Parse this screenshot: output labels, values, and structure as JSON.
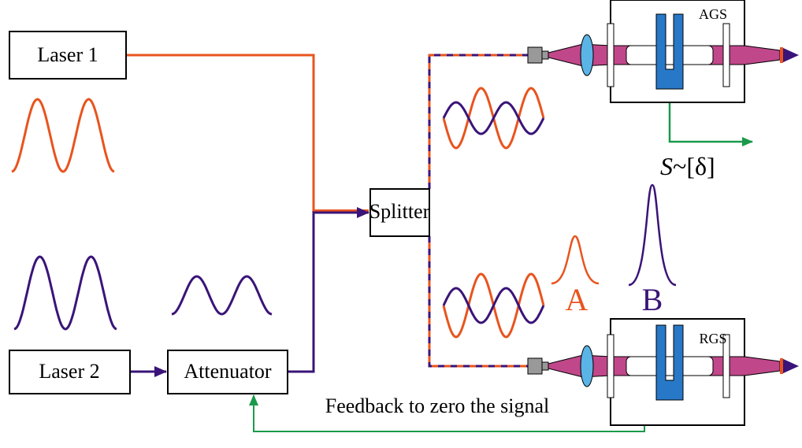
{
  "nodes": {
    "laser1": "Laser 1",
    "laser2": "Laser 2",
    "attenuator": "Attenuator",
    "splitter": "Splitter",
    "ags": "AGS",
    "rgs": "RGS"
  },
  "signal": {
    "symbol": "S",
    "rest": "~[δ]"
  },
  "peaks": {
    "a": "A",
    "b": "B"
  },
  "feedback": "Feedback to zero the signal"
}
